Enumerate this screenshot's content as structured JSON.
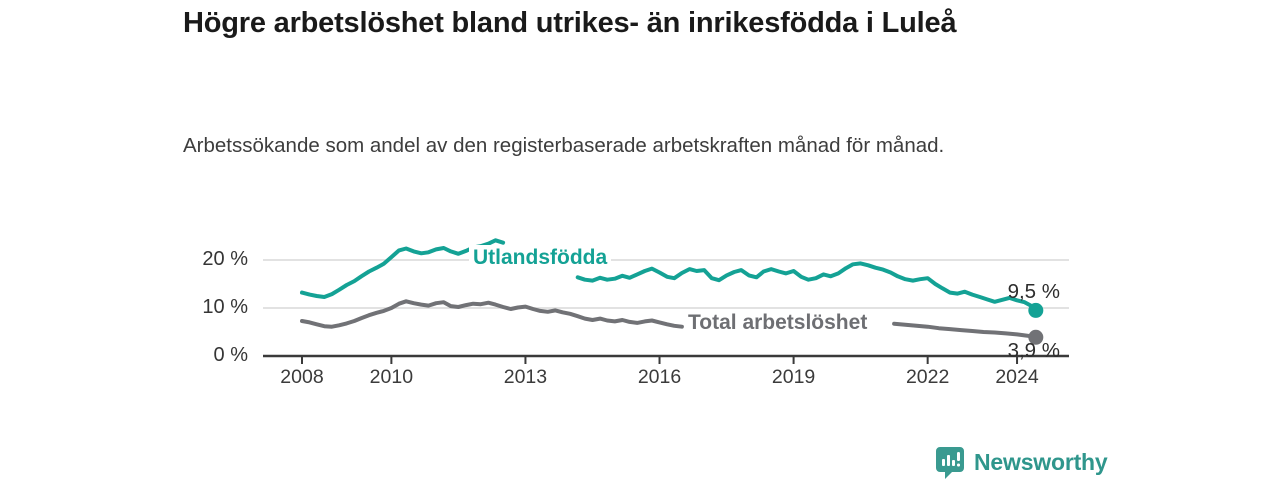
{
  "title": "Högre arbetslöshet bland utrikes- än inrikesfödda i Luleå",
  "subtitle": "Arbetssökande som andel av den registerbaserade arbetskraften månad för månad.",
  "branding": {
    "name": "Newsworthy",
    "icon": "newsworthy-badge-icon",
    "badge_color": "#3a9a90",
    "wordmark_color": "#2f968c"
  },
  "chart_data": {
    "type": "line",
    "title": "Högre arbetslöshet bland utrikes- än inrikesfödda i Luleå",
    "subtitle": "Arbetssökande som andel av den registerbaserade arbetskraften månad för månad.",
    "unit": "%",
    "grid": "horizontal",
    "axis_color": "#3a3a3a",
    "grid_color": "#d9d9d9",
    "x_axis": {
      "ticks": [
        {
          "value": 2008,
          "label": "2008"
        },
        {
          "value": 2010,
          "label": "2010"
        },
        {
          "value": 2013,
          "label": "2013"
        },
        {
          "value": 2016,
          "label": "2016"
        },
        {
          "value": 2019,
          "label": "2019"
        },
        {
          "value": 2022,
          "label": "2022"
        },
        {
          "value": 2024,
          "label": "2024"
        }
      ],
      "range": [
        2007.15,
        2025.15
      ]
    },
    "y_axis": {
      "ticks": [
        {
          "value": 0,
          "label": "0 %"
        },
        {
          "value": 10,
          "label": "10 %"
        },
        {
          "value": 20,
          "label": "20 %"
        }
      ],
      "range": [
        0,
        25
      ]
    },
    "series": [
      {
        "name": "Utlandsfödda",
        "color": "#14a295",
        "end_label": "9,5 %",
        "end_value": 9.5,
        "points": [
          [
            2008.0,
            13.2
          ],
          [
            2008.17,
            12.8
          ],
          [
            2008.33,
            12.5
          ],
          [
            2008.5,
            12.3
          ],
          [
            2008.67,
            12.9
          ],
          [
            2008.83,
            13.8
          ],
          [
            2009.0,
            14.8
          ],
          [
            2009.17,
            15.6
          ],
          [
            2009.33,
            16.6
          ],
          [
            2009.5,
            17.6
          ],
          [
            2009.67,
            18.4
          ],
          [
            2009.83,
            19.2
          ],
          [
            2010.0,
            20.6
          ],
          [
            2010.17,
            22.0
          ],
          [
            2010.33,
            22.4
          ],
          [
            2010.5,
            21.8
          ],
          [
            2010.67,
            21.4
          ],
          [
            2010.83,
            21.6
          ],
          [
            2011.0,
            22.2
          ],
          [
            2011.17,
            22.5
          ],
          [
            2011.33,
            21.8
          ],
          [
            2011.5,
            21.3
          ],
          [
            2011.67,
            21.9
          ],
          [
            2011.83,
            22.6
          ],
          [
            2012.0,
            22.9
          ],
          [
            2012.17,
            23.4
          ],
          [
            2012.33,
            24.1
          ],
          [
            2012.5,
            23.6
          ],
          [
            2012.67,
            23.2
          ],
          [
            2012.83,
            22.6
          ],
          [
            2013.0,
            22.0
          ],
          [
            2013.25,
            20.8
          ],
          [
            2013.5,
            19.6
          ],
          [
            2013.75,
            18.6
          ],
          [
            2014.0,
            17.8
          ],
          [
            2014.17,
            16.4
          ],
          [
            2014.33,
            15.9
          ],
          [
            2014.5,
            15.7
          ],
          [
            2014.67,
            16.3
          ],
          [
            2014.83,
            15.9
          ],
          [
            2015.0,
            16.1
          ],
          [
            2015.17,
            16.7
          ],
          [
            2015.33,
            16.3
          ],
          [
            2015.5,
            17.0
          ],
          [
            2015.67,
            17.7
          ],
          [
            2015.83,
            18.2
          ],
          [
            2016.0,
            17.4
          ],
          [
            2016.17,
            16.5
          ],
          [
            2016.33,
            16.2
          ],
          [
            2016.5,
            17.3
          ],
          [
            2016.67,
            18.1
          ],
          [
            2016.83,
            17.7
          ],
          [
            2017.0,
            17.9
          ],
          [
            2017.17,
            16.2
          ],
          [
            2017.33,
            15.8
          ],
          [
            2017.5,
            16.8
          ],
          [
            2017.67,
            17.5
          ],
          [
            2017.83,
            17.9
          ],
          [
            2018.0,
            16.8
          ],
          [
            2018.17,
            16.4
          ],
          [
            2018.33,
            17.6
          ],
          [
            2018.5,
            18.1
          ],
          [
            2018.67,
            17.6
          ],
          [
            2018.83,
            17.2
          ],
          [
            2019.0,
            17.7
          ],
          [
            2019.17,
            16.5
          ],
          [
            2019.33,
            15.9
          ],
          [
            2019.5,
            16.2
          ],
          [
            2019.67,
            17.0
          ],
          [
            2019.83,
            16.6
          ],
          [
            2020.0,
            17.2
          ],
          [
            2020.17,
            18.3
          ],
          [
            2020.33,
            19.1
          ],
          [
            2020.5,
            19.3
          ],
          [
            2020.67,
            18.9
          ],
          [
            2020.83,
            18.4
          ],
          [
            2021.0,
            18.0
          ],
          [
            2021.17,
            17.4
          ],
          [
            2021.33,
            16.6
          ],
          [
            2021.5,
            16.0
          ],
          [
            2021.67,
            15.7
          ],
          [
            2021.83,
            16.0
          ],
          [
            2022.0,
            16.2
          ],
          [
            2022.17,
            15.0
          ],
          [
            2022.33,
            14.1
          ],
          [
            2022.5,
            13.2
          ],
          [
            2022.67,
            13.0
          ],
          [
            2022.83,
            13.4
          ],
          [
            2023.0,
            12.8
          ],
          [
            2023.17,
            12.3
          ],
          [
            2023.33,
            11.8
          ],
          [
            2023.5,
            11.3
          ],
          [
            2023.67,
            11.7
          ],
          [
            2023.83,
            12.1
          ],
          [
            2024.0,
            11.6
          ],
          [
            2024.17,
            11.2
          ],
          [
            2024.33,
            10.4
          ],
          [
            2024.42,
            9.5
          ]
        ]
      },
      {
        "name": "Total arbetslöshet",
        "color": "#717276",
        "end_label": "3,9 %",
        "end_value": 3.9,
        "points": [
          [
            2008.0,
            7.3
          ],
          [
            2008.17,
            7.0
          ],
          [
            2008.33,
            6.6
          ],
          [
            2008.5,
            6.2
          ],
          [
            2008.67,
            6.1
          ],
          [
            2008.83,
            6.4
          ],
          [
            2009.0,
            6.8
          ],
          [
            2009.17,
            7.3
          ],
          [
            2009.33,
            7.9
          ],
          [
            2009.5,
            8.5
          ],
          [
            2009.67,
            9.0
          ],
          [
            2009.83,
            9.4
          ],
          [
            2010.0,
            10.0
          ],
          [
            2010.17,
            10.9
          ],
          [
            2010.33,
            11.4
          ],
          [
            2010.5,
            11.0
          ],
          [
            2010.67,
            10.7
          ],
          [
            2010.83,
            10.5
          ],
          [
            2011.0,
            11.0
          ],
          [
            2011.17,
            11.2
          ],
          [
            2011.33,
            10.4
          ],
          [
            2011.5,
            10.2
          ],
          [
            2011.67,
            10.6
          ],
          [
            2011.83,
            10.9
          ],
          [
            2012.0,
            10.8
          ],
          [
            2012.17,
            11.1
          ],
          [
            2012.33,
            10.7
          ],
          [
            2012.5,
            10.2
          ],
          [
            2012.67,
            9.8
          ],
          [
            2012.83,
            10.1
          ],
          [
            2013.0,
            10.3
          ],
          [
            2013.17,
            9.8
          ],
          [
            2013.33,
            9.4
          ],
          [
            2013.5,
            9.2
          ],
          [
            2013.67,
            9.5
          ],
          [
            2013.83,
            9.1
          ],
          [
            2014.0,
            8.8
          ],
          [
            2014.17,
            8.3
          ],
          [
            2014.33,
            7.8
          ],
          [
            2014.5,
            7.5
          ],
          [
            2014.67,
            7.8
          ],
          [
            2014.83,
            7.4
          ],
          [
            2015.0,
            7.2
          ],
          [
            2015.17,
            7.5
          ],
          [
            2015.33,
            7.1
          ],
          [
            2015.5,
            6.9
          ],
          [
            2015.67,
            7.2
          ],
          [
            2015.83,
            7.4
          ],
          [
            2016.0,
            7.0
          ],
          [
            2016.17,
            6.6
          ],
          [
            2016.33,
            6.3
          ],
          [
            2016.5,
            6.1
          ],
          [
            2016.67,
            6.4
          ],
          [
            2016.83,
            6.6
          ],
          [
            2017.0,
            6.7
          ],
          [
            2017.25,
            6.5
          ],
          [
            2017.5,
            6.6
          ],
          [
            2017.75,
            6.8
          ],
          [
            2018.0,
            6.6
          ],
          [
            2018.25,
            6.4
          ],
          [
            2018.5,
            6.5
          ],
          [
            2018.75,
            6.6
          ],
          [
            2019.0,
            6.7
          ],
          [
            2019.25,
            6.5
          ],
          [
            2019.5,
            6.6
          ],
          [
            2019.75,
            6.8
          ],
          [
            2020.0,
            7.0
          ],
          [
            2020.25,
            7.4
          ],
          [
            2020.5,
            7.6
          ],
          [
            2020.75,
            7.4
          ],
          [
            2021.0,
            7.0
          ],
          [
            2021.25,
            6.7
          ],
          [
            2021.5,
            6.5
          ],
          [
            2021.75,
            6.3
          ],
          [
            2022.0,
            6.1
          ],
          [
            2022.25,
            5.8
          ],
          [
            2022.5,
            5.6
          ],
          [
            2022.75,
            5.4
          ],
          [
            2023.0,
            5.2
          ],
          [
            2023.25,
            5.0
          ],
          [
            2023.5,
            4.9
          ],
          [
            2023.75,
            4.7
          ],
          [
            2024.0,
            4.5
          ],
          [
            2024.17,
            4.3
          ],
          [
            2024.33,
            4.1
          ],
          [
            2024.42,
            3.9
          ]
        ]
      }
    ]
  }
}
